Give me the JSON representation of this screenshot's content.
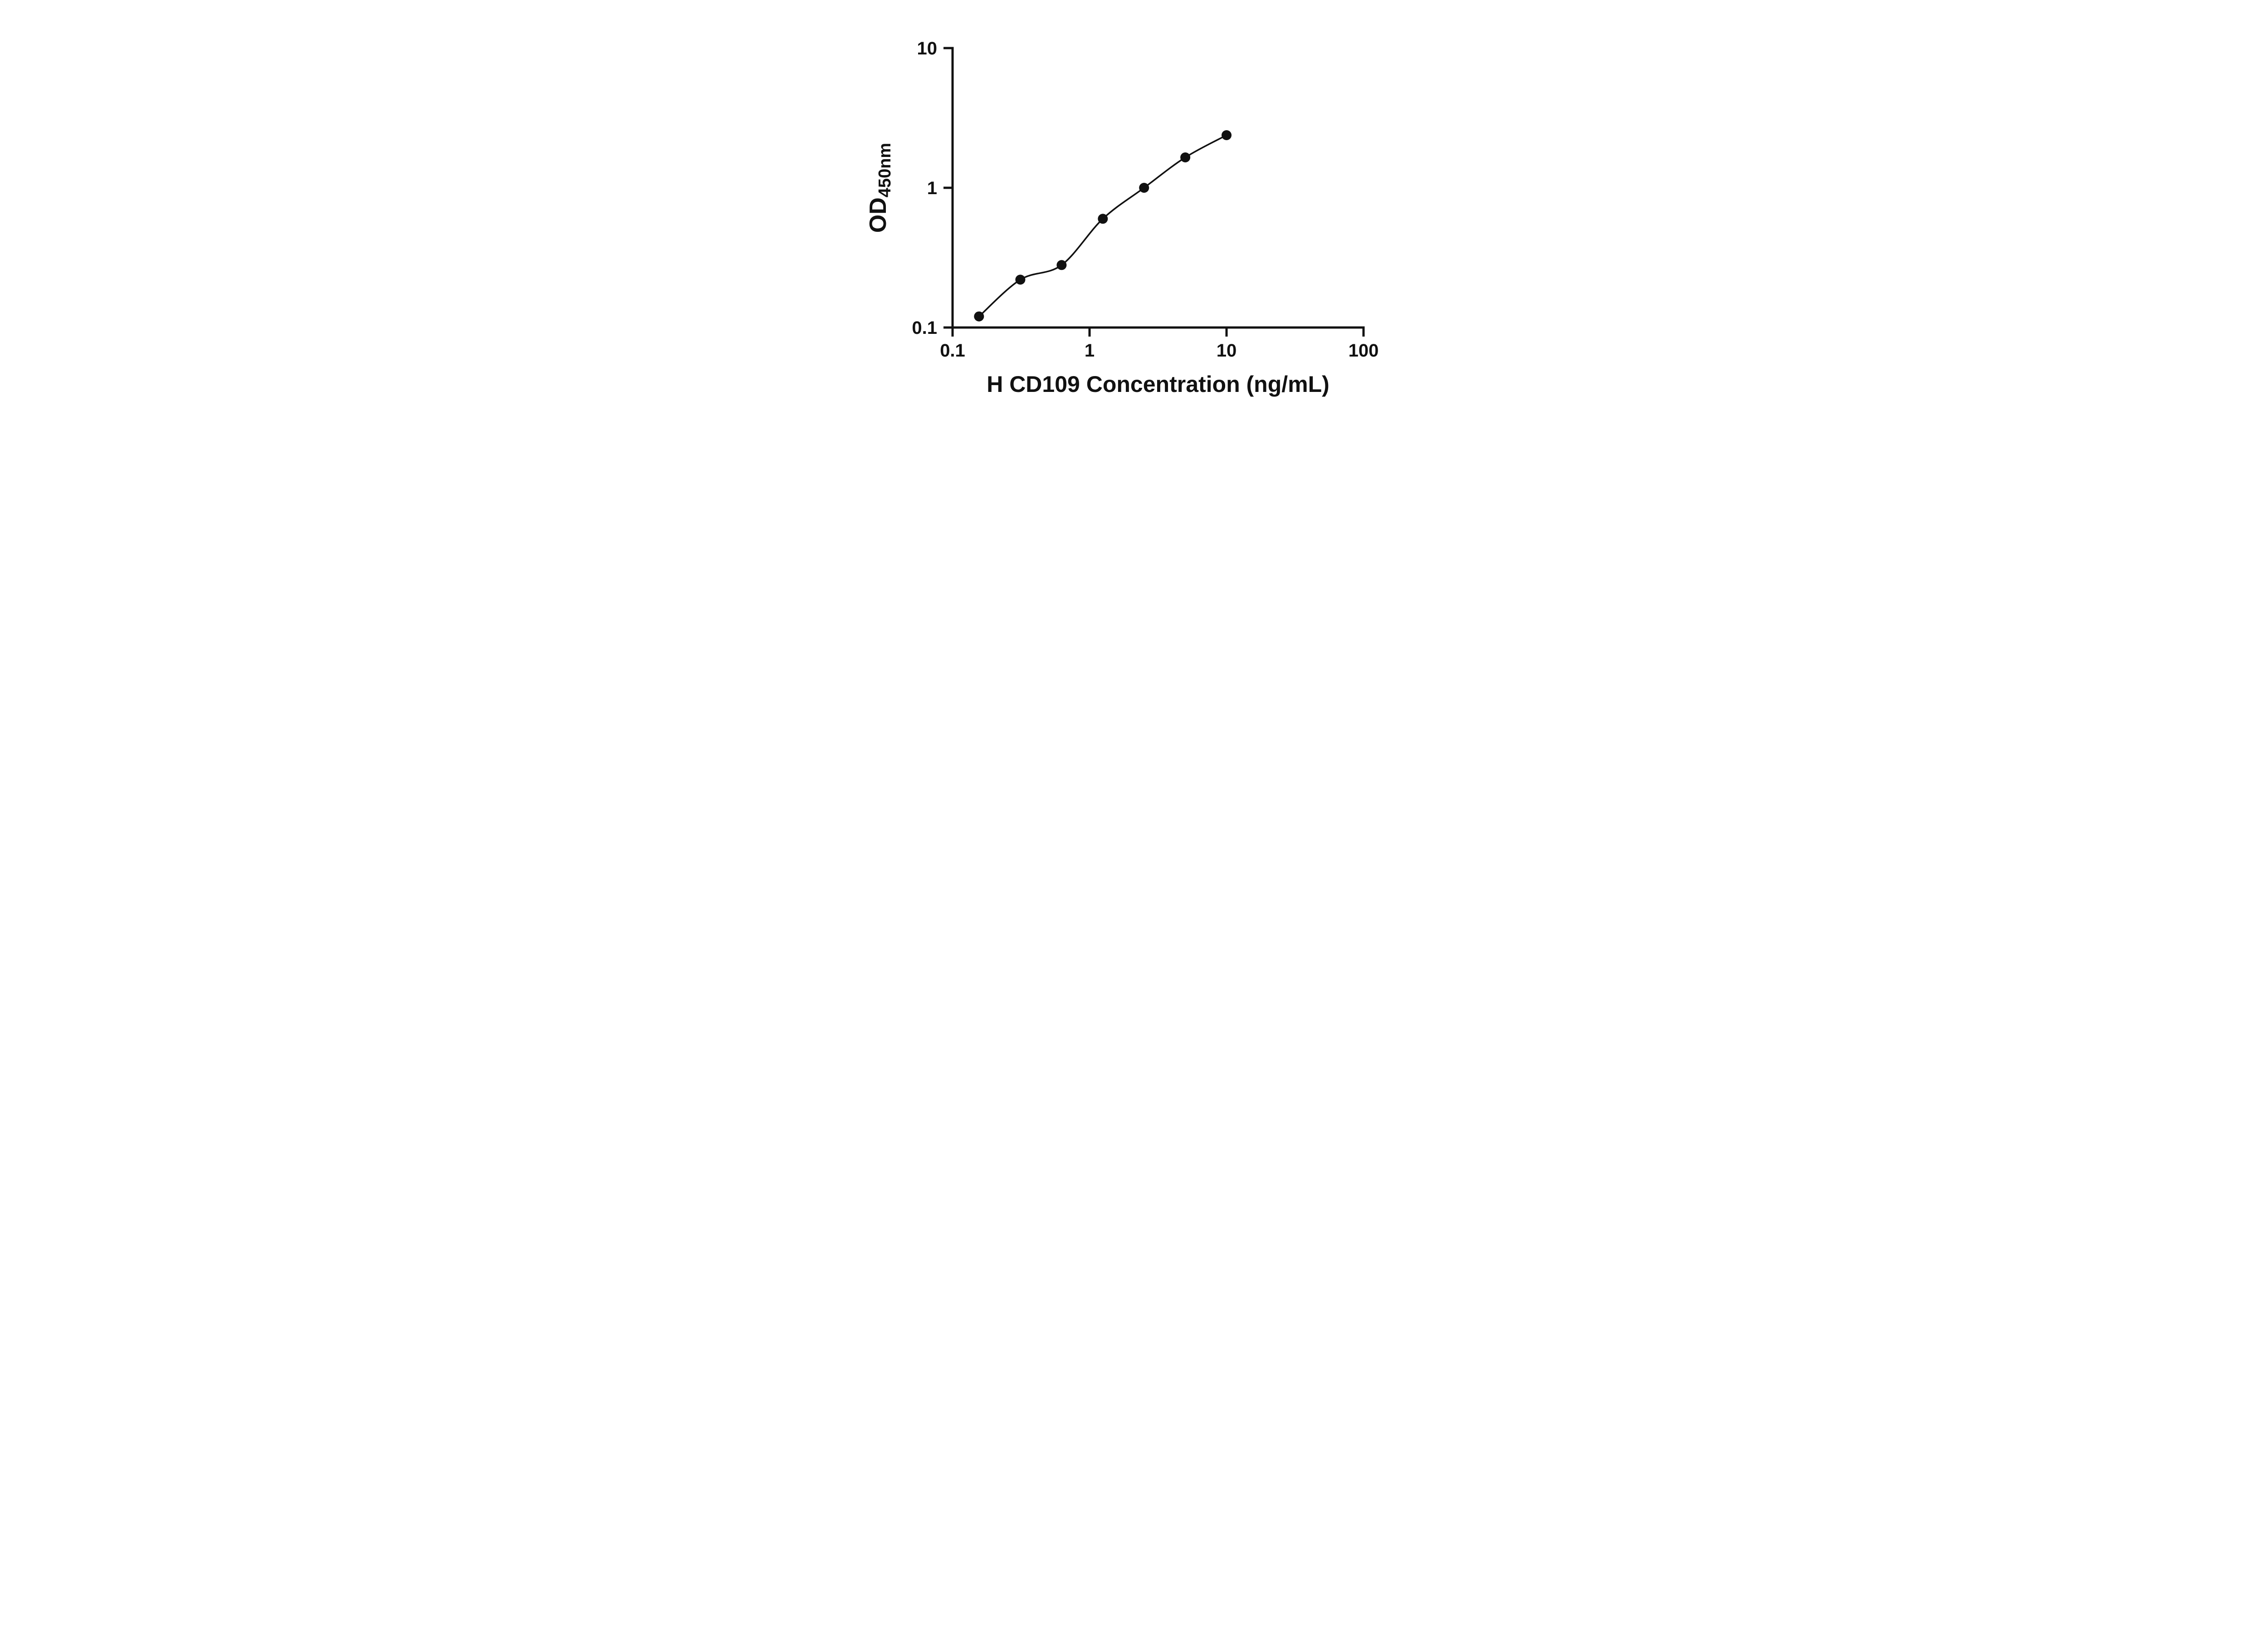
{
  "page": {
    "background": "#ffffff"
  },
  "chart_data": {
    "type": "scatter",
    "title": "",
    "xlabel": "H CD109 Concentration (ng/mL)",
    "ylabel": "OD450nm",
    "ylabel_main": "OD",
    "ylabel_sub": "450nm",
    "x_scale": "log",
    "y_scale": "log",
    "xlim": [
      0.1,
      100
    ],
    "ylim": [
      0.1,
      10
    ],
    "x_ticks": [
      0.1,
      1,
      10,
      100
    ],
    "x_tick_labels": [
      "0.1",
      "1",
      "10",
      "100"
    ],
    "y_ticks": [
      0.1,
      1,
      10
    ],
    "y_tick_labels": [
      "0.1",
      "1",
      "10"
    ],
    "grid": false,
    "legend": null,
    "line_style": "smooth",
    "marker": "circle",
    "marker_color": "#111111",
    "line_color": "#111111",
    "axis_color": "#111111",
    "text_color": "#111111",
    "points": [
      {
        "x": 0.156,
        "y": 0.12
      },
      {
        "x": 0.3125,
        "y": 0.22
      },
      {
        "x": 0.625,
        "y": 0.28
      },
      {
        "x": 1.25,
        "y": 0.6
      },
      {
        "x": 2.5,
        "y": 1.0
      },
      {
        "x": 5,
        "y": 1.65
      },
      {
        "x": 10,
        "y": 2.38
      }
    ]
  }
}
